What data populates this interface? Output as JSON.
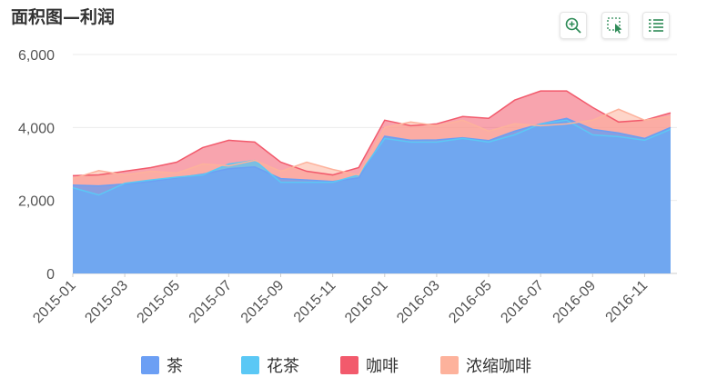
{
  "title": "面积图—利润",
  "toolbar": [
    {
      "name": "zoom-icon",
      "label": "zoom"
    },
    {
      "name": "select-icon",
      "label": "select"
    },
    {
      "name": "list-icon",
      "label": "data view"
    }
  ],
  "colors": {
    "茶": "#6c9ff4",
    "花茶": "#5bc8f5",
    "咖啡": "#f25a6c",
    "浓缩咖啡": "#fdb29c",
    "grid": "#ebebeb",
    "axis_text": "#555555",
    "toolbar_icon": "#2e8b57"
  },
  "chart_data": {
    "type": "area",
    "title": "面积图—利润",
    "xlabel": "",
    "ylabel": "",
    "ylim": [
      0,
      6000
    ],
    "yticks": [
      "0",
      "2,000",
      "4,000",
      "6,000"
    ],
    "x": [
      "2015-01",
      "2015-02",
      "2015-03",
      "2015-04",
      "2015-05",
      "2015-06",
      "2015-07",
      "2015-08",
      "2015-09",
      "2015-10",
      "2015-11",
      "2015-12",
      "2016-01",
      "2016-02",
      "2016-03",
      "2016-04",
      "2016-05",
      "2016-06",
      "2016-07",
      "2016-08",
      "2016-09",
      "2016-10",
      "2016-11",
      "2016-12"
    ],
    "xtick_labels": [
      "2015-01",
      "2015-03",
      "2015-05",
      "2015-07",
      "2015-09",
      "2015-11",
      "2016-01",
      "2016-03",
      "2016-05",
      "2016-07",
      "2016-09",
      "2016-11"
    ],
    "grid": true,
    "legend_position": "bottom",
    "series": [
      {
        "name": "茶",
        "values": [
          2420,
          2400,
          2450,
          2520,
          2620,
          2720,
          2870,
          2920,
          2600,
          2560,
          2520,
          2620,
          3760,
          3650,
          3660,
          3720,
          3640,
          3900,
          4100,
          4250,
          3950,
          3850,
          3700,
          4000
        ]
      },
      {
        "name": "花茶",
        "values": [
          2350,
          2150,
          2470,
          2560,
          2640,
          2700,
          3000,
          3100,
          2500,
          2500,
          2500,
          2700,
          3700,
          3600,
          3600,
          3700,
          3600,
          3800,
          4100,
          4200,
          3800,
          3750,
          3650,
          3950
        ]
      },
      {
        "name": "咖啡",
        "values": [
          2680,
          2700,
          2800,
          2900,
          3050,
          3450,
          3650,
          3600,
          3050,
          2800,
          2700,
          2900,
          4200,
          4050,
          4100,
          4300,
          4250,
          4750,
          5000,
          5000,
          4550,
          4150,
          4200,
          4400
        ]
      },
      {
        "name": "浓缩咖啡",
        "values": [
          2600,
          2820,
          2700,
          2800,
          2750,
          3000,
          2950,
          3100,
          2800,
          3050,
          2850,
          2700,
          4000,
          4150,
          4050,
          4200,
          3900,
          4100,
          4050,
          4100,
          4200,
          4500,
          4200,
          4300
        ]
      }
    ]
  }
}
